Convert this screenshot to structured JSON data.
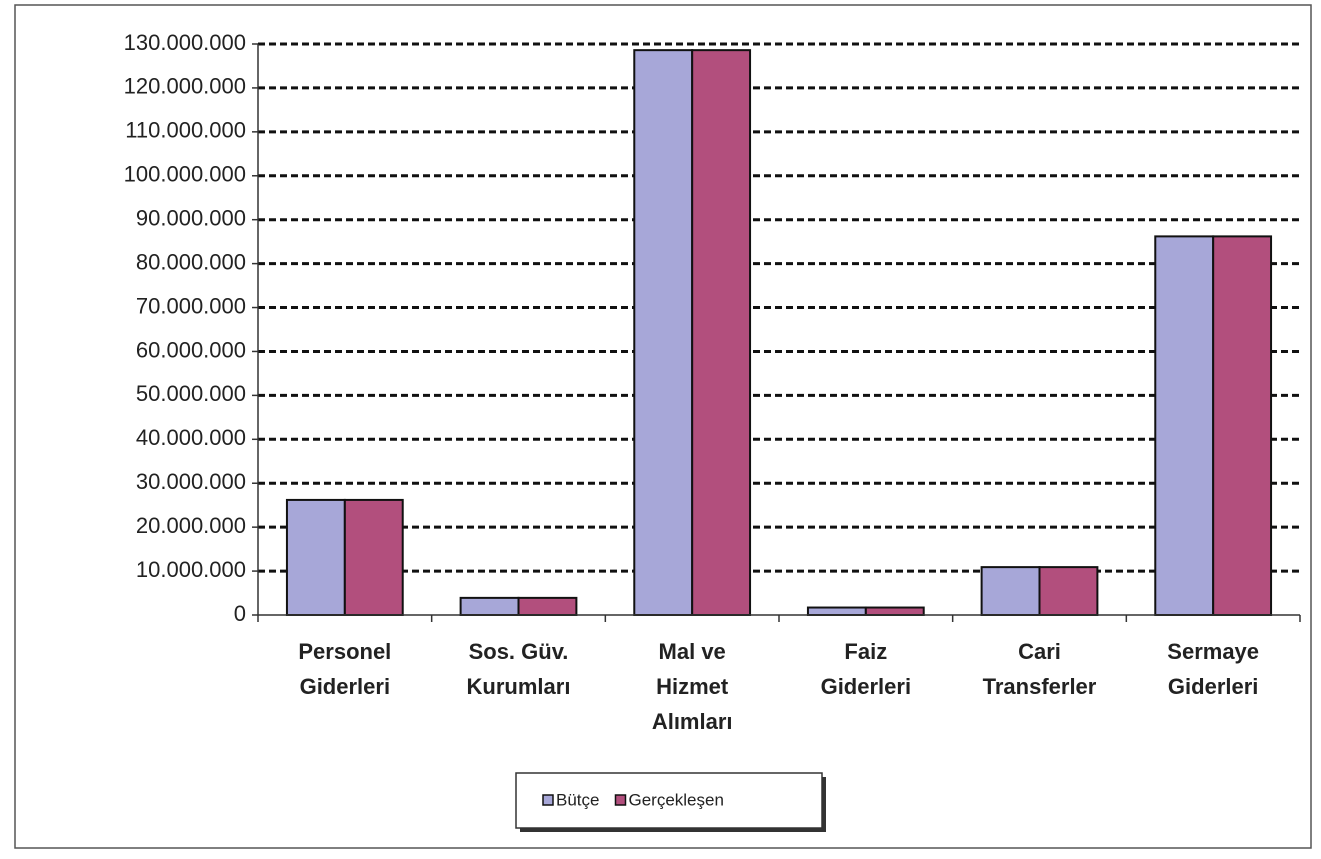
{
  "chart_data": {
    "type": "bar",
    "categories": [
      [
        "Personel",
        "Giderleri"
      ],
      [
        "Sos. Güv.",
        "Kurumları"
      ],
      [
        "Mal ve",
        "Hizmet",
        "Alımları"
      ],
      [
        "Faiz",
        "Giderleri"
      ],
      [
        "Cari",
        "Transferler"
      ],
      [
        "Sermaye",
        "Giderleri"
      ]
    ],
    "series": [
      {
        "name": "Bütçe",
        "color": "#a7a7d8",
        "values": [
          26200000,
          3900000,
          128600000,
          1700000,
          10900000,
          86200000
        ]
      },
      {
        "name": "Gerçekleşen",
        "color": "#b24f7d",
        "values": [
          26200000,
          3900000,
          128600000,
          1700000,
          10900000,
          86200000
        ]
      }
    ],
    "ylim": [
      0,
      130000000
    ],
    "yticks": [
      0,
      {
        "value": 10000000,
        "label": "10.000.000"
      },
      {
        "value": 20000000,
        "label": "20.000.000"
      },
      {
        "value": 30000000,
        "label": "30.000.000"
      },
      {
        "value": 40000000,
        "label": "40.000.000"
      },
      {
        "value": 50000000,
        "label": "50.000.000"
      },
      {
        "value": 60000000,
        "label": "60.000.000"
      },
      {
        "value": 70000000,
        "label": "70.000.000"
      },
      {
        "value": 80000000,
        "label": "80.000.000"
      },
      {
        "value": 90000000,
        "label": "90.000.000"
      },
      {
        "value": 100000000,
        "label": "100.000.000"
      },
      {
        "value": 110000000,
        "label": "110.000.000"
      },
      {
        "value": 120000000,
        "label": "120.000.000"
      },
      {
        "value": 130000000,
        "label": "130.000.000"
      }
    ],
    "grid": true,
    "legend": "bottom"
  }
}
